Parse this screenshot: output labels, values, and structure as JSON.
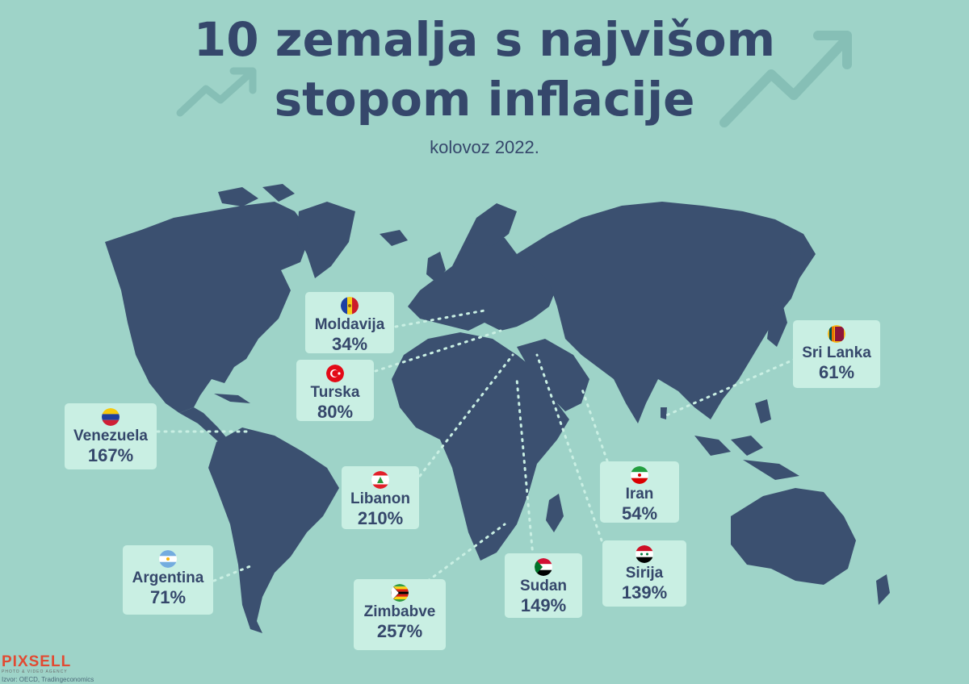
{
  "title_line1": "10 zemalja s najvišom",
  "title_line2": "stopom inflacije",
  "subtitle": "kolovoz 2022.",
  "logo": {
    "name": "PIXSELL",
    "tagline": "PHOTO & VIDEO AGENCY"
  },
  "source": "Izvor: OECD, Tradingeconomics",
  "colors": {
    "background": "#9ed3c8",
    "land": "#3b5070",
    "card": "#c9efe3",
    "text": "#35476b",
    "logo": "#e24a32"
  },
  "countries": [
    {
      "name": "Moldavija",
      "value": "34%",
      "flag": "moldova-flag-icon"
    },
    {
      "name": "Turska",
      "value": "80%",
      "flag": "turkey-flag-icon"
    },
    {
      "name": "Venezuela",
      "value": "167%",
      "flag": "venezuela-flag-icon"
    },
    {
      "name": "Libanon",
      "value": "210%",
      "flag": "lebanon-flag-icon"
    },
    {
      "name": "Argentina",
      "value": "71%",
      "flag": "argentina-flag-icon"
    },
    {
      "name": "Zimbabve",
      "value": "257%",
      "flag": "zimbabwe-flag-icon"
    },
    {
      "name": "Sudan",
      "value": "149%",
      "flag": "sudan-flag-icon"
    },
    {
      "name": "Iran",
      "value": "54%",
      "flag": "iran-flag-icon"
    },
    {
      "name": "Sirija",
      "value": "139%",
      "flag": "syria-flag-icon"
    },
    {
      "name": "Sri Lanka",
      "value": "61%",
      "flag": "sri-lanka-flag-icon"
    }
  ]
}
